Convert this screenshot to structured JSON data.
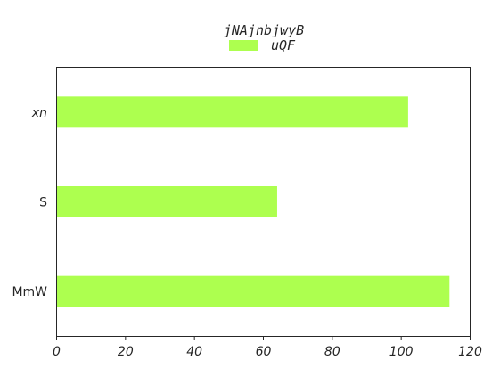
{
  "chart_data": {
    "type": "bar",
    "orientation": "horizontal",
    "title": "jNAjnbjwyB",
    "categories": [
      "MmW",
      "S",
      "xn"
    ],
    "series": [
      {
        "name": "uQF",
        "values": [
          114,
          64,
          102
        ],
        "color": "#adff4f"
      }
    ],
    "xlim": [
      0,
      120
    ],
    "xticks": [
      0,
      20,
      40,
      60,
      80,
      100,
      120
    ],
    "xtick_labels": [
      "0",
      "20",
      "40",
      "60",
      "80",
      "100",
      "120"
    ],
    "xlabel": "",
    "ylabel": "",
    "grid": false,
    "legend_position": "top-center"
  }
}
